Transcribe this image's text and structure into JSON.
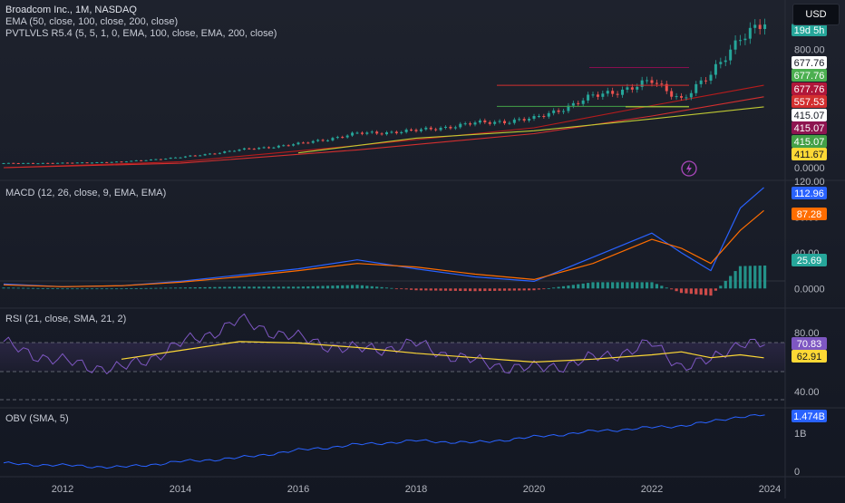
{
  "header": {
    "title": "Broadcom Inc., 1M, NASDAQ",
    "currency_button": "USD",
    "ema_legend": "EMA (50, close, 100, close, 200, close)",
    "pvt_legend": "PVTLVLS R5.4 (5, 5, 1, 0, EMA, 100, close, EMA, 200, close)"
  },
  "panes": {
    "macd_legend": "MACD (12, 26, close, 9, EMA, EMA)",
    "rsi_legend": "RSI (21, close, SMA, 21, 2)",
    "obv_legend": "OBV (SMA, 5)"
  },
  "price_scale": {
    "ticks": [
      "800.00",
      "0.0000"
    ],
    "countdown": "19d 5h",
    "badges": [
      {
        "text": "677.76",
        "bg": "#ffffff",
        "fg": "#131722"
      },
      {
        "text": "677.76",
        "bg": "#4caf50",
        "fg": "#ffffff"
      },
      {
        "text": "677.76",
        "bg": "#b0173a",
        "fg": "#ffffff"
      },
      {
        "text": "557.53",
        "bg": "#d32f2f",
        "fg": "#ffffff"
      },
      {
        "text": "415.07",
        "bg": "#ffffff",
        "fg": "#131722"
      },
      {
        "text": "415.07",
        "bg": "#8e1450",
        "fg": "#ffffff"
      },
      {
        "text": "415.07",
        "bg": "#43a047",
        "fg": "#ffffff"
      },
      {
        "text": "411.67",
        "bg": "#fdd835",
        "fg": "#131722"
      }
    ]
  },
  "macd_scale": {
    "ticks": [
      "120.00",
      "80.00",
      "40.00",
      "0.0000"
    ],
    "badges": [
      {
        "text": "112.96",
        "bg": "#2962ff",
        "fg": "#ffffff"
      },
      {
        "text": "87.28",
        "bg": "#ff6d00",
        "fg": "#ffffff"
      },
      {
        "text": "25.69",
        "bg": "#26a69a",
        "fg": "#ffffff"
      }
    ]
  },
  "rsi_scale": {
    "ticks": [
      "80.00",
      "40.00"
    ],
    "badges": [
      {
        "text": "70.83",
        "bg": "#7e57c2",
        "fg": "#ffffff"
      },
      {
        "text": "62.91",
        "bg": "#fdd835",
        "fg": "#131722"
      }
    ]
  },
  "obv_scale": {
    "ticks": [
      "1B",
      "0"
    ],
    "badges": [
      {
        "text": "1.474B",
        "bg": "#2962ff",
        "fg": "#ffffff"
      }
    ]
  },
  "time_axis": {
    "labels": [
      "2012",
      "2014",
      "2016",
      "2018",
      "2020",
      "2022",
      "2024"
    ]
  },
  "colors": {
    "bull": "#26a69a",
    "bear": "#ef5350",
    "ema50": "#b71c1c",
    "ema100": "#d32f2f",
    "ema200": "#c0ca33",
    "macd": "#2962ff",
    "signal": "#ff6d00",
    "rsi": "#7e57c2",
    "rsi_ma": "#fdd835",
    "obv": "#2962ff",
    "pivot_high": "#880e4f",
    "pivot_low": "#43a047"
  },
  "chart_data": [
    {
      "type": "candlestick",
      "title": "Broadcom Inc., 1M, NASDAQ",
      "x": [
        2011,
        2012,
        2013,
        2014,
        2015,
        2016,
        2017,
        2018,
        2019,
        2020,
        2021,
        2022,
        2022.5,
        2023,
        2023.5,
        2023.9
      ],
      "close": [
        30,
        32,
        40,
        70,
        120,
        160,
        230,
        250,
        300,
        330,
        480,
        580,
        470,
        620,
        900,
        960
      ],
      "series": [
        {
          "name": "EMA 50",
          "x": [
            2011,
            2014,
            2017,
            2020,
            2022,
            2023.9
          ],
          "values": [
            0,
            40,
            150,
            270,
            420,
            557.53
          ]
        },
        {
          "name": "EMA 100",
          "x": [
            2011,
            2014,
            2017,
            2020,
            2022,
            2023.9
          ],
          "values": [
            0,
            30,
            120,
            230,
            350,
            480
          ]
        },
        {
          "name": "EMA 200",
          "x": [
            2016,
            2018,
            2020,
            2022,
            2023.9
          ],
          "values": [
            100,
            200,
            250,
            330,
            411.67
          ]
        }
      ],
      "pivot_levels": [
        677.76,
        557.53,
        415.07,
        411.67
      ],
      "ylim": [
        0,
        1000
      ]
    },
    {
      "type": "line",
      "title": "MACD (12, 26, close, 9, EMA, EMA)",
      "x": [
        2011,
        2012,
        2013,
        2014,
        2015,
        2016,
        2017,
        2018,
        2019,
        2020,
        2021,
        2022,
        2022.5,
        2023,
        2023.5,
        2023.9
      ],
      "series": [
        {
          "name": "MACD",
          "values": [
            5,
            2,
            3,
            8,
            15,
            22,
            32,
            22,
            13,
            8,
            35,
            62,
            40,
            20,
            90,
            112.96
          ]
        },
        {
          "name": "Signal",
          "values": [
            4,
            2,
            3,
            7,
            13,
            20,
            28,
            24,
            16,
            10,
            28,
            55,
            45,
            28,
            65,
            87.28
          ]
        },
        {
          "name": "Histogram",
          "values": [
            1,
            0,
            0,
            1,
            2,
            2,
            4,
            -2,
            -3,
            -2,
            7,
            7,
            -5,
            -8,
            25,
            25.69
          ]
        }
      ],
      "ylim": [
        -20,
        120
      ]
    },
    {
      "type": "line",
      "title": "RSI (21, close, SMA, 21, 2)",
      "x": [
        2011,
        2012,
        2013,
        2014,
        2015,
        2016,
        2017,
        2018,
        2019,
        2020,
        2021,
        2022,
        2022.5,
        2023,
        2023.5,
        2023.9
      ],
      "series": [
        {
          "name": "RSI",
          "values": [
            72,
            60,
            55,
            72,
            88,
            76,
            68,
            72,
            60,
            55,
            62,
            72,
            58,
            60,
            75,
            70.83
          ]
        },
        {
          "name": "RSI-based MA",
          "values": [
            null,
            null,
            62,
            68,
            74,
            73,
            70,
            66,
            63,
            60,
            62,
            65,
            67,
            63,
            65,
            62.91
          ]
        }
      ],
      "ylim": [
        30,
        95
      ]
    },
    {
      "type": "line",
      "title": "OBV (SMA, 5)",
      "x": [
        2011,
        2012,
        2013,
        2014,
        2015,
        2016,
        2017,
        2018,
        2019,
        2020,
        2021,
        2022,
        2022.5,
        2023,
        2023.5,
        2023.9
      ],
      "series": [
        {
          "name": "OBV",
          "values": [
            0.2,
            0.15,
            0.1,
            0.25,
            0.35,
            0.55,
            0.7,
            0.8,
            0.75,
            0.9,
            1.05,
            1.15,
            1.2,
            1.3,
            1.45,
            1.474
          ]
        }
      ],
      "ylim": [
        -0.1,
        1.6
      ]
    }
  ]
}
